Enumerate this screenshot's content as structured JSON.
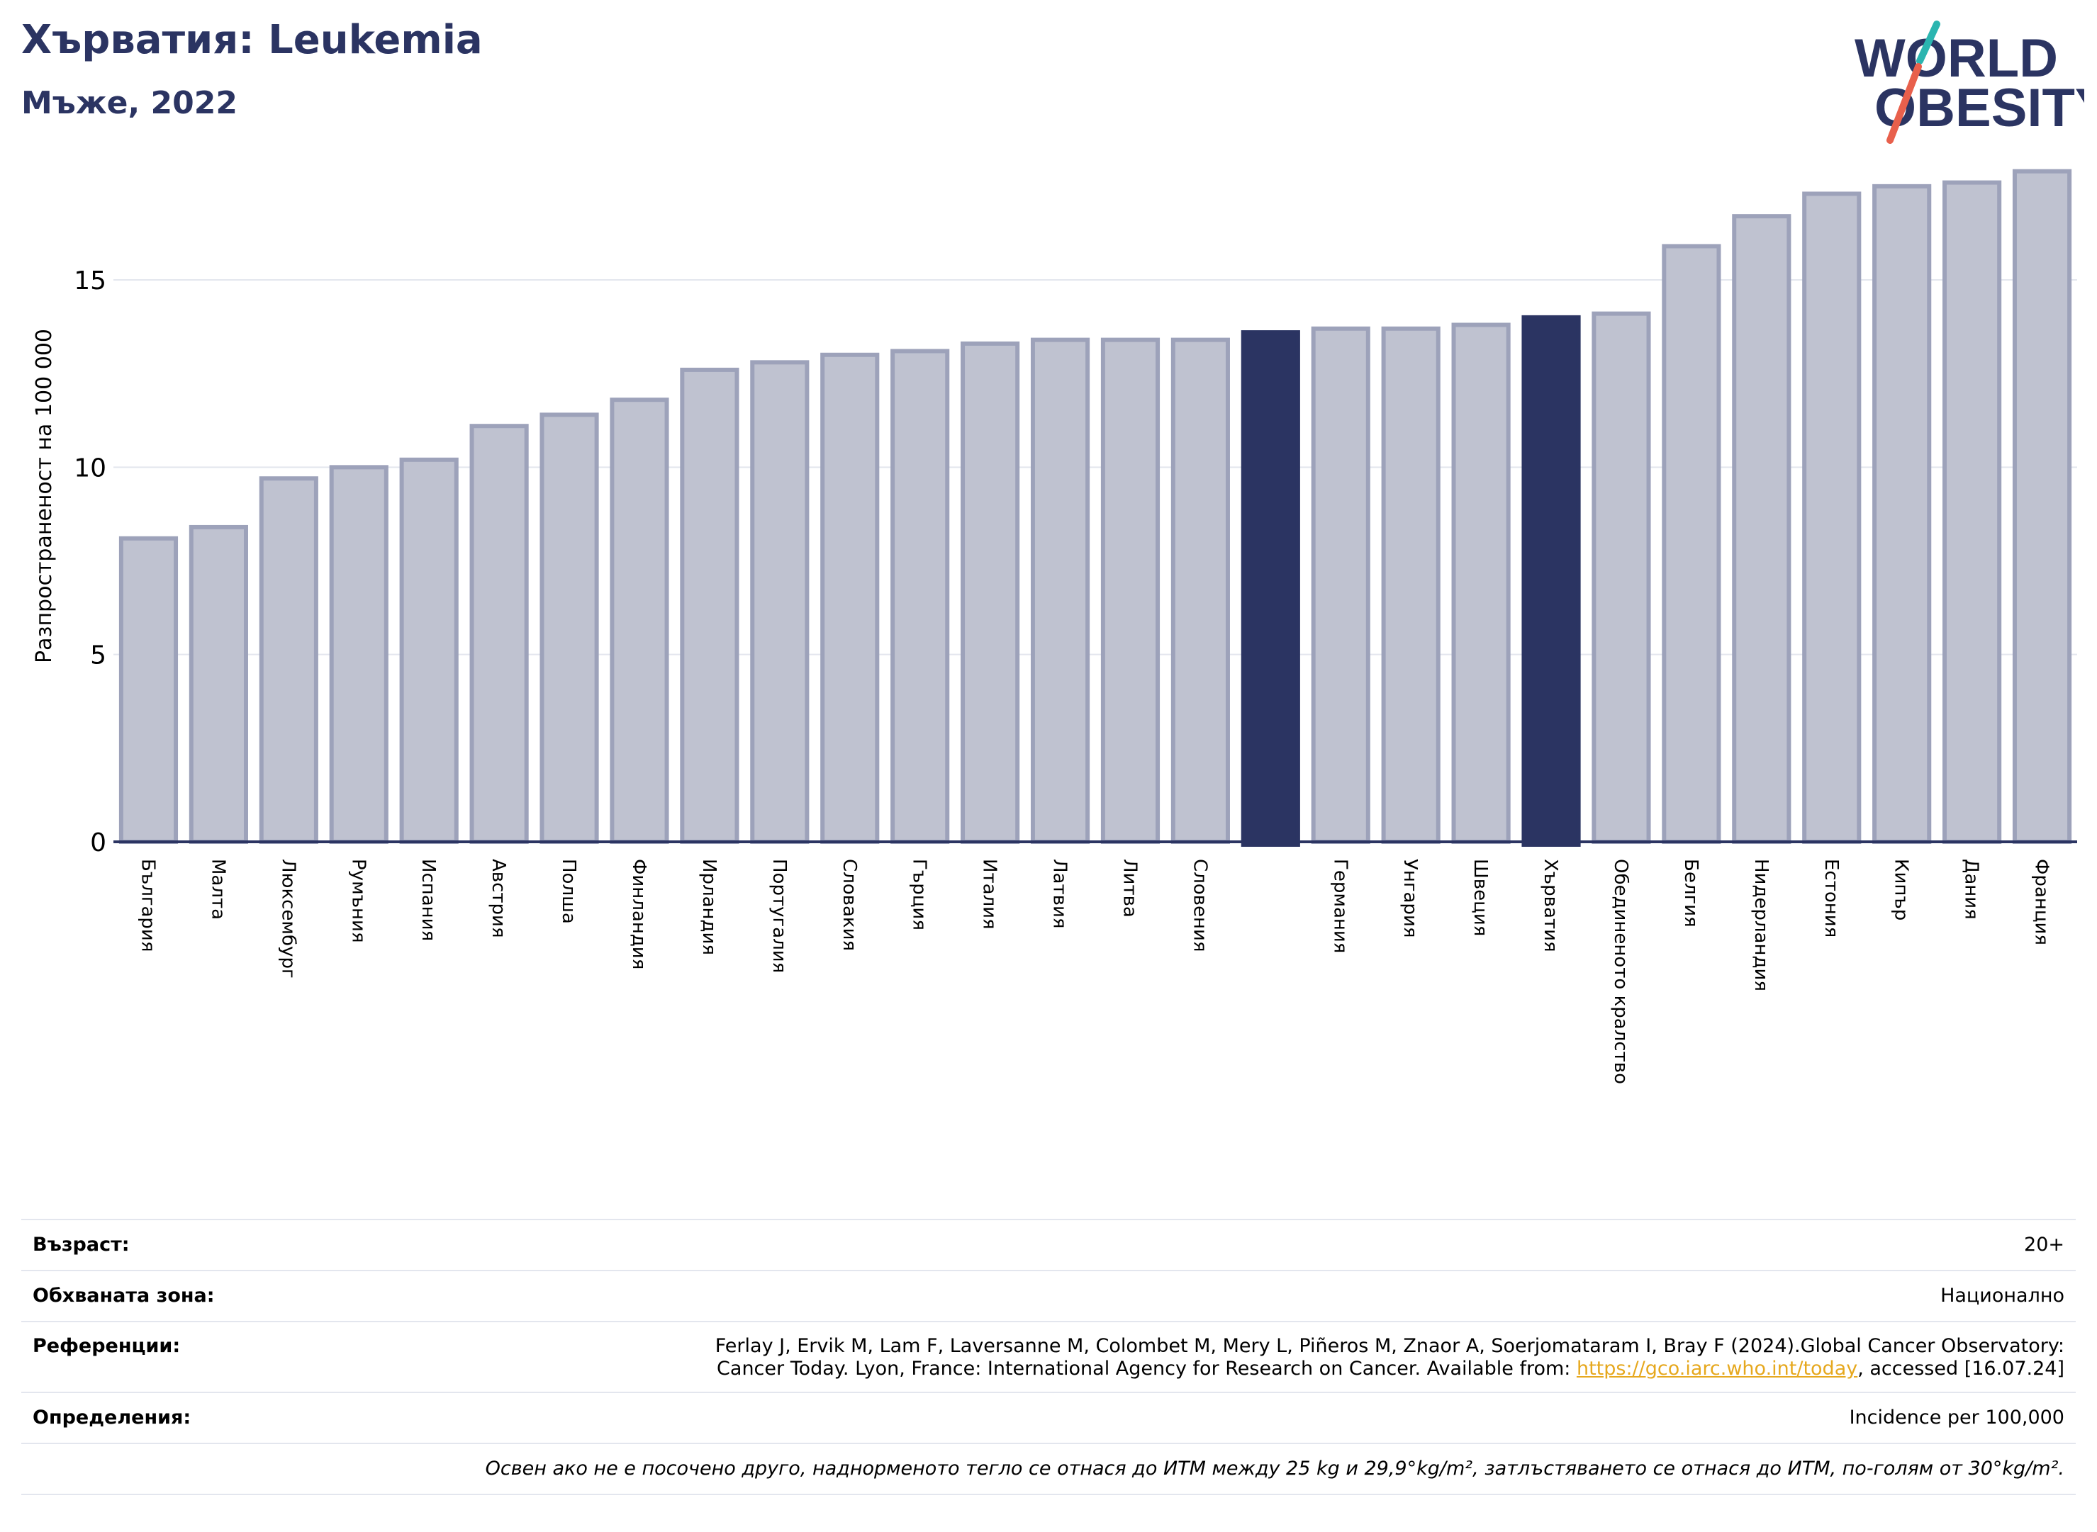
{
  "header": {
    "title": "Хърватия: Leukemia",
    "subtitle": "Мъже, 2022"
  },
  "logo": {
    "line1": "WORLD",
    "line2": "OBESITY",
    "accent_colors": [
      "#2bb5b0",
      "#e8604c"
    ],
    "text_color": "#2b3462"
  },
  "chart_data": {
    "type": "bar",
    "ylabel": "Разпространеност  на 100 000",
    "ylim": [
      0,
      18.5
    ],
    "yticks": [
      0,
      5,
      10,
      15
    ],
    "grid": true,
    "categories": [
      "България",
      "Малта",
      "Люксембург",
      "Румъния",
      "Испания",
      "Австрия",
      "Полша",
      "Финландия",
      "Ирландия",
      "Португалия",
      "Словакия",
      "Гърция",
      "Италия",
      "Латвия",
      "Литва",
      "Словения",
      "",
      "Германия",
      "Унгария",
      "Швеция",
      "Хърватия",
      "Обединеното кралство",
      "Белгия",
      "Нидерландия",
      "Естония",
      "Кипър",
      "Дания",
      "Франция"
    ],
    "values": [
      8.1,
      8.4,
      9.7,
      10.0,
      10.2,
      11.1,
      11.4,
      11.8,
      12.6,
      12.8,
      13.0,
      13.1,
      13.3,
      13.4,
      13.4,
      13.4,
      13.6,
      13.7,
      13.7,
      13.8,
      14.0,
      14.1,
      15.9,
      16.7,
      17.3,
      17.5,
      17.6,
      17.9
    ],
    "highlighted": [
      16,
      20
    ],
    "colors": {
      "bar": "#bfc2d0",
      "bar_edge": "#9da2ba",
      "highlight": "#2b3462",
      "axis": "#2b3462",
      "grid": "#e3e6ee"
    }
  },
  "info": {
    "age_label": "Възраст:",
    "age_value": "20+",
    "area_label": "Обхваната зона:",
    "area_value": "Национално",
    "references_label": "Референции:",
    "references_line1": "Ferlay J, Ervik M, Lam F, Laversanne M, Colombet M, Mery L, Piñeros M, Znaor A, Soerjomataram I, Bray F (2024).Global Cancer Observatory:",
    "references_line2_pre": "Cancer Today. Lyon, France: International Agency for Research on Cancer. Available from: ",
    "references_link": "https://gco.iarc.who.int/today",
    "references_line2_post": ", accessed [16.07.24]",
    "definitions_label": "Определения:",
    "definitions_value": "Incidence per 100,000",
    "note": "Освен ако не е посочено друго, наднорменото тегло се отнася до ИТМ между 25 kg и 29,9°kg/m², затлъстяването се отнася до ИТМ, по-голям от 30°kg/m²."
  }
}
